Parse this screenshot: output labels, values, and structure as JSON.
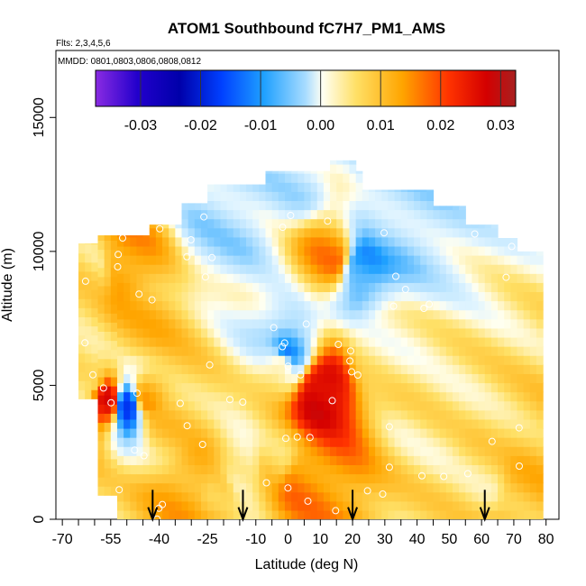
{
  "chart_data": {
    "type": "heatmap",
    "title": "ATOM1 Southbound fC7H7_PM1_AMS",
    "flights_label": "Flts: 2,3,4,5,6",
    "dates_label": "MMDD: 0801,0803,0806,0808,0812",
    "xlabel": "Latitude (deg N)",
    "ylabel": "Altitude (m)",
    "xlim": [
      -72,
      84
    ],
    "ylim": [
      0,
      17500
    ],
    "x_ticks": [
      "-70",
      "-55",
      "-40",
      "-25",
      "-10",
      "0",
      "10",
      "20",
      "30",
      "40",
      "50",
      "60",
      "70",
      "80"
    ],
    "x_tick_values": [
      -70,
      -55,
      -40,
      -25,
      -10,
      0,
      10,
      20,
      30,
      40,
      50,
      60,
      70,
      80
    ],
    "y_ticks": [
      "0",
      "5000",
      "10000",
      "15000"
    ],
    "y_tick_values": [
      0,
      5000,
      10000,
      15000
    ],
    "colorbar": {
      "range": [
        -0.0375,
        0.0325
      ],
      "ticks": [
        "-0.03",
        "-0.02",
        "-0.01",
        "0.00",
        "0.01",
        "0.02",
        "0.03"
      ],
      "tick_values": [
        -0.03,
        -0.02,
        -0.01,
        0.0,
        0.01,
        0.02,
        0.03
      ],
      "colors": [
        "#8a2be2",
        "#0000cd",
        "#0000ff",
        "#1e90ff",
        "#87cefa",
        "#e0f7ff",
        "#fffff0",
        "#ffe066",
        "#ffb000",
        "#ff6600",
        "#ff0000",
        "#b22222"
      ]
    },
    "profile_markers_lat": [
      -42,
      -14,
      20,
      61
    ],
    "field_cells": [
      {
        "lat": -62,
        "alt": 5200,
        "v": 0.004
      },
      {
        "lat": -56,
        "alt": 4400,
        "v": 0.025
      },
      {
        "lat": -50,
        "alt": 4300,
        "v": -0.02
      },
      {
        "lat": -44,
        "alt": 4600,
        "v": 0.012
      },
      {
        "lat": -52,
        "alt": 9500,
        "v": 0.014
      },
      {
        "lat": -60,
        "alt": 9200,
        "v": 0.006
      },
      {
        "lat": -46,
        "alt": 7300,
        "v": 0.01
      },
      {
        "lat": -38,
        "alt": 3500,
        "v": 0.008
      },
      {
        "lat": -30,
        "alt": 1200,
        "v": 0.012
      },
      {
        "lat": -22,
        "alt": 800,
        "v": 0.01
      },
      {
        "lat": -14,
        "alt": 1800,
        "v": 0.002
      },
      {
        "lat": -4,
        "alt": 2200,
        "v": 0.008
      },
      {
        "lat": 4,
        "alt": 1500,
        "v": 0.015
      },
      {
        "lat": 10,
        "alt": 4800,
        "v": 0.028
      },
      {
        "lat": 14,
        "alt": 9800,
        "v": 0.014
      },
      {
        "lat": 22,
        "alt": 9400,
        "v": -0.01
      },
      {
        "lat": 0,
        "alt": 6300,
        "v": -0.01
      },
      {
        "lat": -2,
        "alt": 5800,
        "v": 0.006
      },
      {
        "lat": 28,
        "alt": 6200,
        "v": 0.004
      },
      {
        "lat": 45,
        "alt": 3600,
        "v": 0.005
      },
      {
        "lat": 60,
        "alt": 1500,
        "v": 0.006
      },
      {
        "lat": 72,
        "alt": 800,
        "v": 0.01
      },
      {
        "lat": 30,
        "alt": 11200,
        "v": -0.003
      },
      {
        "lat": -20,
        "alt": 11000,
        "v": -0.003
      },
      {
        "lat": 0,
        "alt": 12800,
        "v": -0.002
      }
    ]
  }
}
